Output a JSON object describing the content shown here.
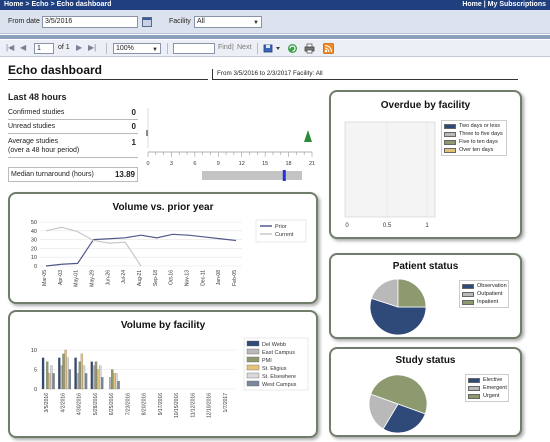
{
  "breadcrumb": {
    "home": "Home",
    "sep": ">",
    "echo": "Echo",
    "current": "Echo dashboard",
    "right_home": "Home",
    "bar": "|",
    "subs": "My Subscriptions"
  },
  "filters": {
    "from_label": "From date",
    "from_value": "3/5/2016",
    "facility_label": "Facility",
    "facility_value": "All"
  },
  "toolbar": {
    "page": "1",
    "of_label": "of 1",
    "zoom": "100%",
    "find": "Find",
    "bar": "|",
    "next": "Next"
  },
  "title": "Echo dashboard",
  "date_range": "From 3/5/2016 to 2/3/2017 Facility: All",
  "last48": {
    "heading": "Last 48 hours",
    "rows": [
      {
        "label": "Confirmed studies",
        "value": "0"
      },
      {
        "label": "Unread studies",
        "value": "0"
      },
      {
        "label": "Average studies",
        "label2": "(over a 48 hour period)",
        "value": "1"
      }
    ],
    "median_label": "Median turnaround (hours)",
    "median_value": "13.89",
    "gauge_ticks": [
      "0",
      "3",
      "6",
      "9",
      "12",
      "15",
      "18",
      "21"
    ],
    "gauge_level_hours": 13.89
  },
  "volume_vs_prior": {
    "title": "Volume vs. prior year",
    "y_ticks": [
      "50",
      "40",
      "30",
      "20",
      "10",
      "0"
    ],
    "x_labels": [
      "Mar-05",
      "Apr-03",
      "May-01",
      "May-29",
      "Jun-26",
      "Jul-24",
      "Aug-21",
      "Sep-18",
      "Oct-16",
      "Nov-13",
      "Dec-11",
      "Jan-08",
      "Feb-05"
    ],
    "legend": [
      "Prior",
      "Current"
    ]
  },
  "volume_by_facility": {
    "title": "Volume by facility",
    "y_ticks": [
      "10",
      "5",
      "0"
    ],
    "x_labels": [
      "3/5/2016",
      "4/2/2016",
      "4/30/2016",
      "5/28/2016",
      "6/25/2016",
      "7/23/2016",
      "8/20/2016",
      "9/17/2016",
      "10/15/2016",
      "11/12/2016",
      "12/10/2016",
      "1/7/2017"
    ],
    "legend": [
      "Del Webb",
      "East Campus",
      "PMI",
      "St. Eligius",
      "St. Elsewhere",
      "West Campus"
    ]
  },
  "overdue": {
    "title": "Overdue by facility",
    "x_ticks": [
      "0",
      "0.5",
      "1"
    ],
    "legend": [
      "Two days or less",
      "Three to five days",
      "Five to ten days",
      "Over ten days"
    ]
  },
  "patient_status": {
    "title": "Patient status",
    "legend": [
      "Observation",
      "Outpatient",
      "Inpatient"
    ]
  },
  "study_status": {
    "title": "Study status",
    "legend": [
      "Elective",
      "Emergent",
      "Urgent"
    ]
  },
  "colors": {
    "navy": "#2f4a78",
    "gray": "#b9b9b9",
    "olive": "#8d9a70",
    "tan": "#e5c27a",
    "slate": "#7b879b",
    "line_prior": "#525a8a",
    "line_current": "#c9c9c9"
  },
  "chart_data": [
    {
      "type": "line",
      "title": "Volume vs. prior year",
      "categories": [
        "Mar-05",
        "Apr-03",
        "May-01",
        "May-29",
        "Jun-26",
        "Jul-24",
        "Aug-21",
        "Sep-18",
        "Oct-16",
        "Nov-13",
        "Dec-11",
        "Jan-08",
        "Feb-05"
      ],
      "series": [
        {
          "name": "Prior",
          "values": [
            0,
            2,
            3,
            30,
            31,
            32,
            35,
            32,
            36,
            35,
            33,
            31,
            29
          ]
        },
        {
          "name": "Current",
          "values": [
            40,
            44,
            39,
            29,
            26,
            27,
            0,
            null,
            null,
            null,
            null,
            null,
            null
          ]
        }
      ],
      "ylim": [
        0,
        50
      ]
    },
    {
      "type": "bar",
      "title": "Volume by facility",
      "categories": [
        "3/5/2016",
        "4/2/2016",
        "4/30/2016",
        "5/28/2016",
        "6/25/2016",
        "7/23/2016",
        "8/20/2016",
        "9/17/2016",
        "10/15/2016",
        "11/12/2016",
        "12/10/2016",
        "1/7/2017"
      ],
      "series": [
        {
          "name": "Del Webb",
          "values": [
            8,
            8,
            8,
            7,
            0,
            0,
            0,
            0,
            0,
            0,
            0,
            0
          ]
        },
        {
          "name": "East Campus",
          "values": [
            0,
            6,
            4,
            6,
            3,
            0,
            0,
            0,
            0,
            0,
            0,
            0
          ]
        },
        {
          "name": "PMI",
          "values": [
            7,
            9,
            7,
            7,
            5,
            0,
            0,
            0,
            0,
            0,
            0,
            0
          ]
        },
        {
          "name": "St. Eligius",
          "values": [
            4,
            10,
            9,
            5,
            4,
            0,
            0,
            0,
            0,
            0,
            0,
            0
          ]
        },
        {
          "name": "St. Elsewhere",
          "values": [
            6,
            8,
            6,
            6,
            4,
            0,
            0,
            0,
            0,
            0,
            0,
            0
          ]
        },
        {
          "name": "West Campus",
          "values": [
            4,
            5,
            4,
            3,
            2,
            0,
            0,
            0,
            0,
            0,
            0,
            0
          ]
        }
      ],
      "ylim": [
        0,
        10
      ]
    },
    {
      "type": "bar",
      "title": "Overdue by facility",
      "series": [
        {
          "name": "Two days or less",
          "values": []
        },
        {
          "name": "Three to five days",
          "values": []
        },
        {
          "name": "Five to ten days",
          "values": []
        },
        {
          "name": "Over ten days",
          "values": []
        }
      ],
      "xlim": [
        0,
        1
      ]
    },
    {
      "type": "pie",
      "title": "Patient status",
      "categories": [
        "Observation",
        "Outpatient",
        "Inpatient"
      ],
      "values": [
        55,
        20,
        25
      ]
    },
    {
      "type": "pie",
      "title": "Study status",
      "categories": [
        "Elective",
        "Emergent",
        "Urgent"
      ],
      "values": [
        28,
        22,
        50
      ]
    }
  ]
}
